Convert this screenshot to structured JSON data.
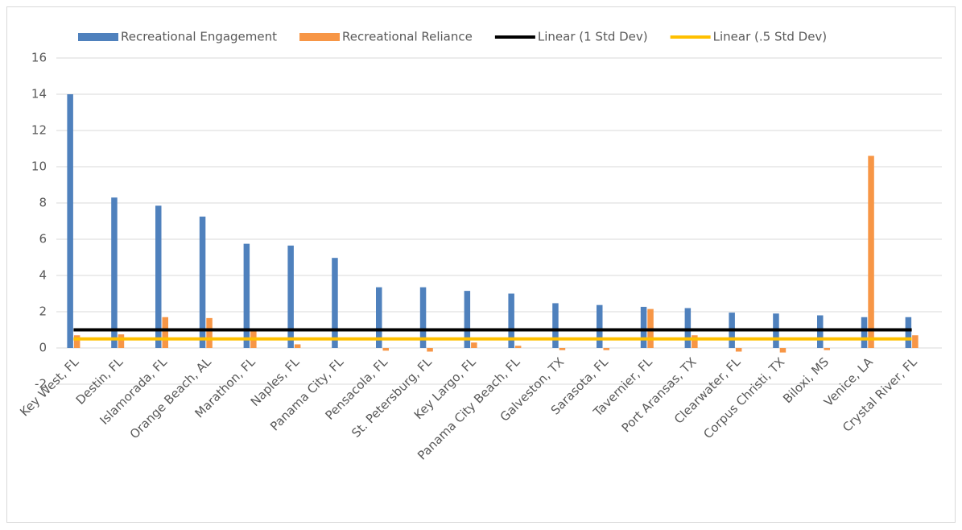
{
  "chart_data": {
    "type": "bar",
    "categories": [
      "Key West, FL",
      "Destin, FL",
      "Islamorada, FL",
      "Orange Beach, AL",
      "Marathon, FL",
      "Naples, FL",
      "Panama City, FL",
      "Pensacola, FL",
      "St. Petersburg, FL",
      "Key Largo, FL",
      "Panama City Beach, FL",
      "Galveston, TX",
      "Sarasota, FL",
      "Tavernier, FL",
      "Port Aransas, TX",
      "Clearwater, FL",
      "Corpus Christi, TX",
      "Biloxi, MS",
      "Venice, LA",
      "Crystal River, FL"
    ],
    "series": [
      {
        "name": "Recreational Engagement",
        "type": "bar",
        "color": "#4f81bd",
        "values": [
          14.0,
          8.3,
          7.85,
          7.25,
          5.75,
          5.65,
          4.97,
          3.35,
          3.35,
          3.15,
          3.0,
          2.47,
          2.37,
          2.27,
          2.2,
          1.95,
          1.9,
          1.8,
          1.7,
          1.7
        ]
      },
      {
        "name": "Recreational Reliance",
        "type": "bar",
        "color": "#f79646",
        "values": [
          0.7,
          0.75,
          1.7,
          1.65,
          0.95,
          0.2,
          0,
          -0.15,
          -0.2,
          0.3,
          0.12,
          -0.12,
          -0.12,
          2.15,
          0.7,
          -0.2,
          -0.25,
          -0.12,
          10.6,
          0.7
        ]
      },
      {
        "name": "Linear (1 Std Dev)",
        "type": "line",
        "color": "#000000",
        "values": [
          1,
          1,
          1,
          1,
          1,
          1,
          1,
          1,
          1,
          1,
          1,
          1,
          1,
          1,
          1,
          1,
          1,
          1,
          1,
          1
        ]
      },
      {
        "name": "Linear (.5 Std Dev)",
        "type": "line",
        "color": "#ffc000",
        "values": [
          0.5,
          0.5,
          0.5,
          0.5,
          0.5,
          0.5,
          0.5,
          0.5,
          0.5,
          0.5,
          0.5,
          0.5,
          0.5,
          0.5,
          0.5,
          0.5,
          0.5,
          0.5,
          0.5,
          0.5
        ]
      }
    ],
    "ylim": [
      -2,
      16
    ],
    "yticks": [
      -2,
      0,
      2,
      4,
      6,
      8,
      10,
      12,
      14,
      16
    ],
    "grid": true,
    "legend": "top"
  }
}
